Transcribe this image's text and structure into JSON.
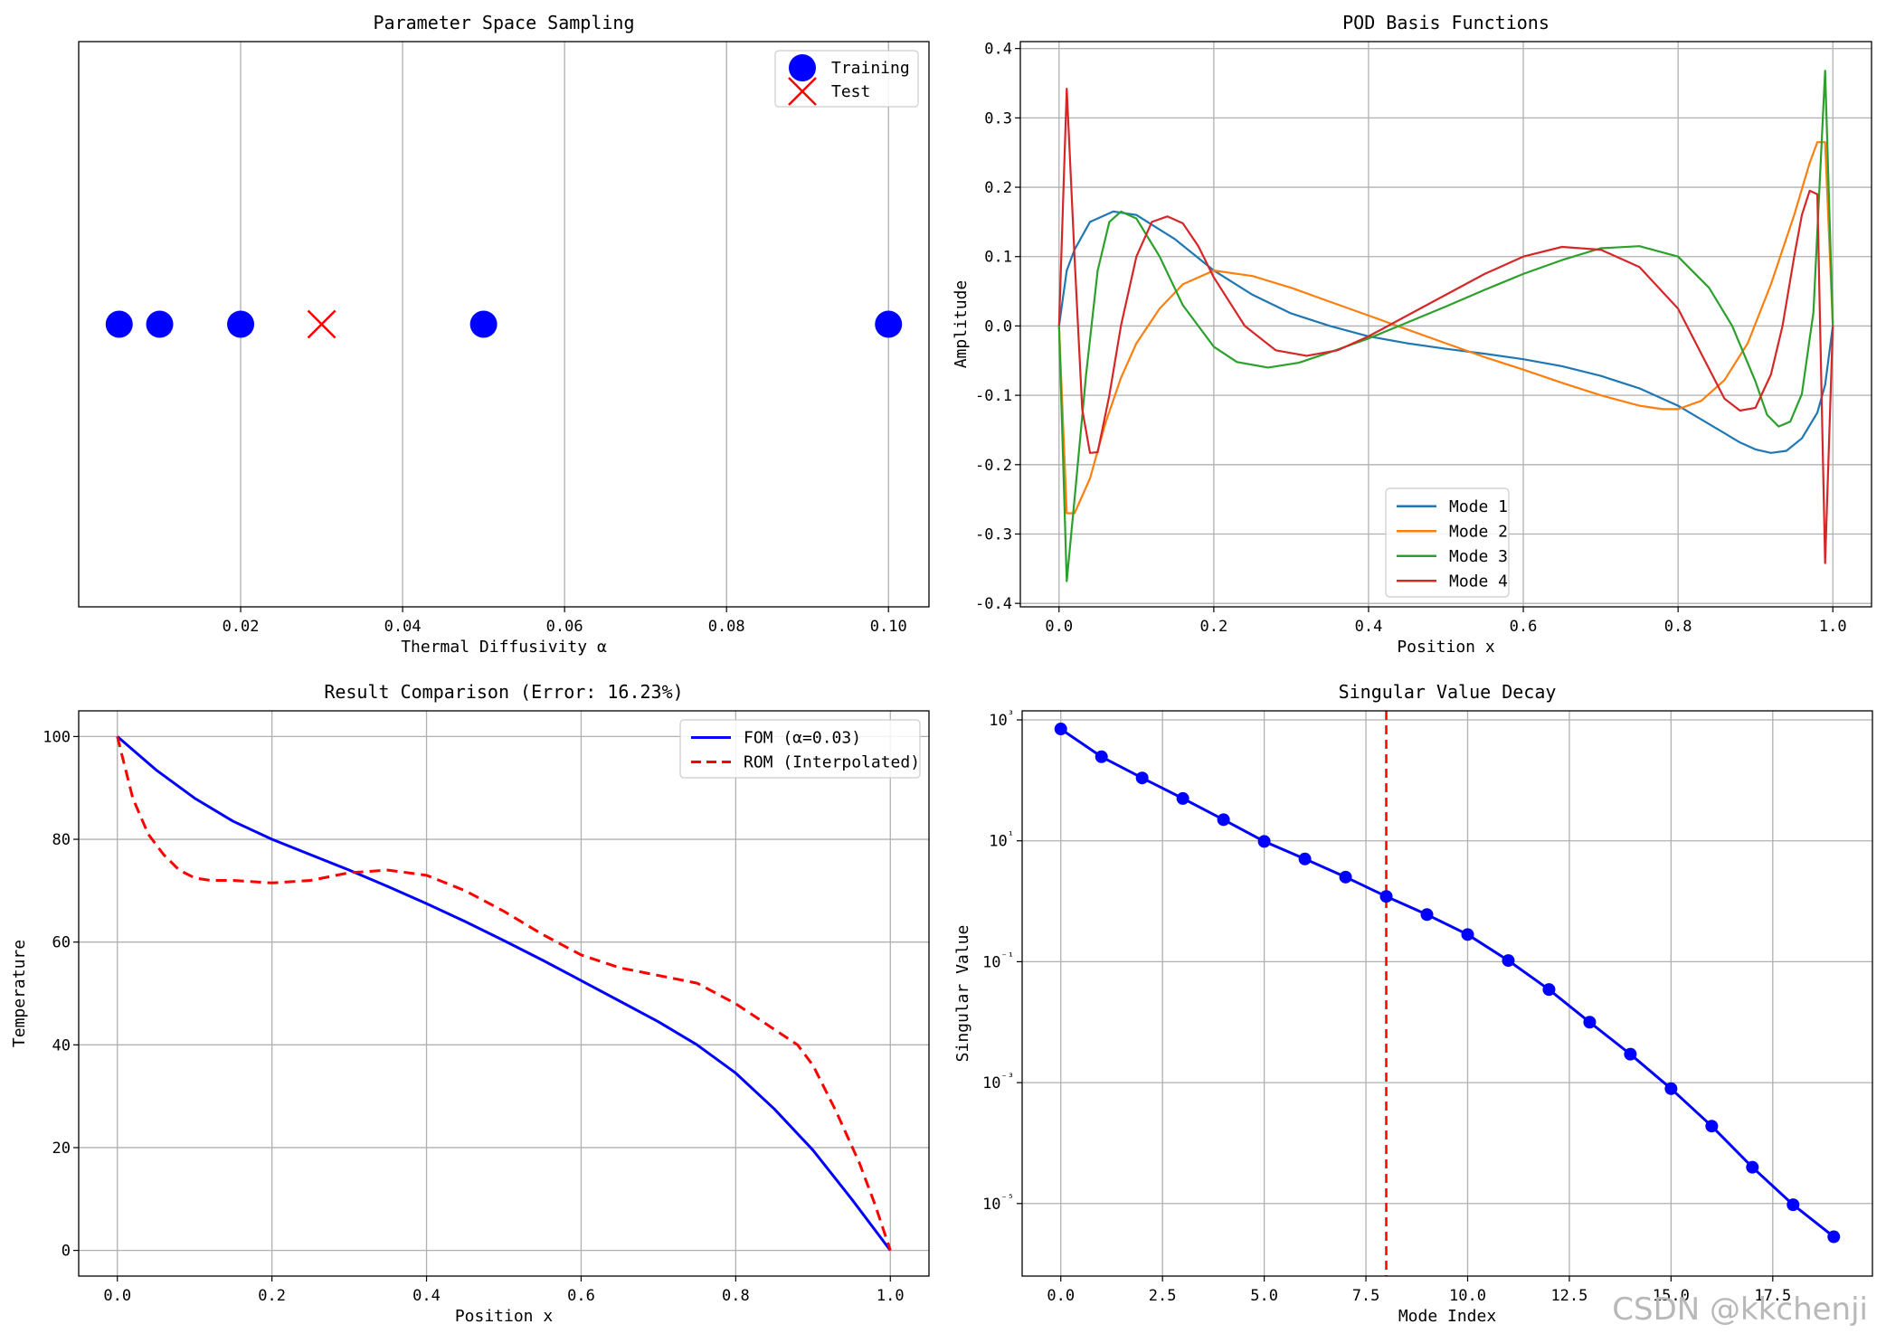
{
  "watermark": "CSDN @kkchenji",
  "chart_data": [
    {
      "id": "p1",
      "type": "scatter",
      "title": "Parameter Space Sampling",
      "xlabel": "Thermal Diffusivity α",
      "ylabel": "",
      "xlim": [
        0.0,
        0.105
      ],
      "ylim": [
        -0.05,
        0.05
      ],
      "xticks": [
        0.02,
        0.04,
        0.06,
        0.08,
        0.1
      ],
      "xticklabels": [
        "0.02",
        "0.04",
        "0.06",
        "0.08",
        "0.10"
      ],
      "yticks": [],
      "yticklabels": [],
      "grid": "x",
      "legend": "top-right",
      "series": [
        {
          "name": "Training",
          "color": "#0000ff",
          "marker": "circle",
          "x": [
            0.005,
            0.01,
            0.02,
            0.05,
            0.1
          ],
          "y": [
            0,
            0,
            0,
            0,
            0
          ]
        },
        {
          "name": "Test",
          "color": "#ff0000",
          "marker": "x",
          "x": [
            0.03
          ],
          "y": [
            0
          ]
        }
      ]
    },
    {
      "id": "p2",
      "type": "line",
      "title": "POD Basis Functions",
      "xlabel": "Position x",
      "ylabel": "Amplitude",
      "xlim": [
        -0.05,
        1.05
      ],
      "ylim": [
        -0.405,
        0.41
      ],
      "xticks": [
        0,
        0.2,
        0.4,
        0.6,
        0.8,
        1.0
      ],
      "xticklabels": [
        "0.0",
        "0.2",
        "0.4",
        "0.6",
        "0.8",
        "1.0"
      ],
      "yticks": [
        -0.4,
        -0.3,
        -0.2,
        -0.1,
        0,
        0.1,
        0.2,
        0.3,
        0.4
      ],
      "yticklabels": [
        "-0.4",
        "-0.3",
        "-0.2",
        "-0.1",
        "0.0",
        "0.1",
        "0.2",
        "0.3",
        "0.4"
      ],
      "grid": "both",
      "legend": "lower-center",
      "series": [
        {
          "name": "Mode 1",
          "color": "#1f77b4",
          "x": [
            0,
            0.01,
            0.02,
            0.04,
            0.07,
            0.1,
            0.15,
            0.2,
            0.25,
            0.3,
            0.35,
            0.4,
            0.45,
            0.5,
            0.55,
            0.6,
            0.65,
            0.7,
            0.75,
            0.8,
            0.85,
            0.88,
            0.9,
            0.92,
            0.94,
            0.96,
            0.98,
            0.99,
            1.0
          ],
          "y": [
            0,
            0.08,
            0.11,
            0.15,
            0.165,
            0.16,
            0.125,
            0.08,
            0.045,
            0.018,
            0.0,
            -0.015,
            -0.025,
            -0.033,
            -0.04,
            -0.048,
            -0.058,
            -0.072,
            -0.09,
            -0.115,
            -0.148,
            -0.168,
            -0.178,
            -0.183,
            -0.18,
            -0.162,
            -0.125,
            -0.085,
            0
          ]
        },
        {
          "name": "Mode 2",
          "color": "#ff7f0e",
          "x": [
            0,
            0.01,
            0.02,
            0.04,
            0.06,
            0.08,
            0.1,
            0.13,
            0.16,
            0.2,
            0.25,
            0.3,
            0.35,
            0.4,
            0.45,
            0.5,
            0.55,
            0.6,
            0.65,
            0.7,
            0.75,
            0.78,
            0.8,
            0.83,
            0.86,
            0.89,
            0.92,
            0.95,
            0.97,
            0.98,
            0.99,
            1.0
          ],
          "y": [
            0,
            -0.27,
            -0.27,
            -0.22,
            -0.14,
            -0.075,
            -0.025,
            0.025,
            0.06,
            0.08,
            0.072,
            0.055,
            0.035,
            0.015,
            -0.005,
            -0.025,
            -0.045,
            -0.063,
            -0.082,
            -0.1,
            -0.115,
            -0.12,
            -0.12,
            -0.108,
            -0.078,
            -0.025,
            0.06,
            0.16,
            0.235,
            0.265,
            0.265,
            0
          ]
        },
        {
          "name": "Mode 3",
          "color": "#2ca02c",
          "x": [
            0,
            0.01,
            0.02,
            0.035,
            0.05,
            0.065,
            0.08,
            0.1,
            0.13,
            0.16,
            0.2,
            0.23,
            0.27,
            0.31,
            0.35,
            0.4,
            0.45,
            0.5,
            0.55,
            0.6,
            0.65,
            0.7,
            0.75,
            0.8,
            0.84,
            0.87,
            0.9,
            0.915,
            0.93,
            0.945,
            0.96,
            0.975,
            0.99,
            1.0
          ],
          "y": [
            0,
            -0.368,
            -0.25,
            -0.07,
            0.08,
            0.15,
            0.165,
            0.155,
            0.1,
            0.03,
            -0.03,
            -0.052,
            -0.06,
            -0.053,
            -0.038,
            -0.018,
            0.005,
            0.028,
            0.052,
            0.075,
            0.095,
            0.112,
            0.115,
            0.1,
            0.055,
            0.0,
            -0.08,
            -0.128,
            -0.145,
            -0.138,
            -0.098,
            0.02,
            0.368,
            0
          ]
        },
        {
          "name": "Mode 4",
          "color": "#d62728",
          "x": [
            0,
            0.01,
            0.02,
            0.03,
            0.04,
            0.05,
            0.065,
            0.08,
            0.1,
            0.12,
            0.14,
            0.16,
            0.18,
            0.2,
            0.24,
            0.28,
            0.32,
            0.36,
            0.4,
            0.45,
            0.5,
            0.55,
            0.6,
            0.65,
            0.7,
            0.75,
            0.8,
            0.83,
            0.86,
            0.88,
            0.9,
            0.92,
            0.935,
            0.95,
            0.96,
            0.97,
            0.98,
            0.99,
            1.0
          ],
          "y": [
            0,
            0.342,
            0.1,
            -0.12,
            -0.183,
            -0.182,
            -0.1,
            0.0,
            0.1,
            0.15,
            0.158,
            0.148,
            0.115,
            0.07,
            0.0,
            -0.035,
            -0.043,
            -0.035,
            -0.015,
            0.015,
            0.045,
            0.075,
            0.1,
            0.114,
            0.11,
            0.085,
            0.025,
            -0.04,
            -0.105,
            -0.122,
            -0.118,
            -0.07,
            0.0,
            0.1,
            0.16,
            0.195,
            0.19,
            -0.342,
            0
          ]
        }
      ]
    },
    {
      "id": "p3",
      "type": "line",
      "title": "Result Comparison (Error: 16.23%)",
      "xlabel": "Position x",
      "ylabel": "Temperature",
      "xlim": [
        -0.05,
        1.05
      ],
      "ylim": [
        -5,
        105
      ],
      "xticks": [
        0,
        0.2,
        0.4,
        0.6,
        0.8,
        1.0
      ],
      "xticklabels": [
        "0.0",
        "0.2",
        "0.4",
        "0.6",
        "0.8",
        "1.0"
      ],
      "yticks": [
        0,
        20,
        40,
        60,
        80,
        100
      ],
      "yticklabels": [
        "0",
        "20",
        "40",
        "60",
        "80",
        "100"
      ],
      "grid": "both",
      "legend": "top-right",
      "series": [
        {
          "name": "FOM (α=0.03)",
          "color": "#0000ff",
          "dash": "solid",
          "x": [
            0,
            0.05,
            0.1,
            0.15,
            0.2,
            0.25,
            0.3,
            0.35,
            0.4,
            0.45,
            0.5,
            0.55,
            0.6,
            0.65,
            0.7,
            0.75,
            0.8,
            0.85,
            0.9,
            0.95,
            1.0
          ],
          "y": [
            100,
            93.5,
            88,
            83.5,
            80,
            77,
            74,
            70.8,
            67.5,
            64,
            60.3,
            56.5,
            52.5,
            48.5,
            44.5,
            40,
            34.5,
            27.5,
            19.5,
            10,
            0
          ]
        },
        {
          "name": "ROM (Interpolated)",
          "color": "#ff0000",
          "dash": "dashed",
          "x": [
            0,
            0.02,
            0.04,
            0.06,
            0.08,
            0.1,
            0.12,
            0.15,
            0.2,
            0.25,
            0.3,
            0.35,
            0.4,
            0.45,
            0.5,
            0.55,
            0.6,
            0.65,
            0.7,
            0.75,
            0.8,
            0.85,
            0.88,
            0.9,
            0.93,
            0.96,
            0.98,
            1.0
          ],
          "y": [
            100,
            88,
            81,
            77,
            74,
            72.5,
            72,
            72,
            71.5,
            72,
            73.5,
            74,
            73,
            70,
            66,
            61.5,
            57.5,
            55,
            53.5,
            52,
            48,
            43,
            40,
            36,
            27,
            17,
            9,
            0
          ]
        }
      ]
    },
    {
      "id": "p4",
      "type": "line",
      "title": "Singular Value Decay",
      "xlabel": "Mode Index",
      "ylabel": "Singular Value",
      "yscale": "log",
      "xlim": [
        -0.95,
        19.95
      ],
      "ylim_log10": [
        -6.2,
        3.15
      ],
      "xticks": [
        0,
        2.5,
        5,
        7.5,
        10,
        12.5,
        15,
        17.5
      ],
      "xticklabels": [
        "0.0",
        "2.5",
        "5.0",
        "7.5",
        "10.0",
        "12.5",
        "15.0",
        "17.5"
      ],
      "yticks_log10": [
        3,
        1,
        -1,
        -3,
        -5
      ],
      "yticklabels": [
        "10³",
        "10¹",
        "10⁻¹",
        "10⁻³",
        "10⁻⁵"
      ],
      "grid": "both",
      "legend": "none",
      "vline": {
        "x": 8,
        "color": "#ff0000",
        "dash": "dashed"
      },
      "series": [
        {
          "name": "",
          "color": "#0000ff",
          "marker": "circle",
          "x": [
            0,
            1,
            2,
            3,
            4,
            5,
            6,
            7,
            8,
            9,
            10,
            11,
            12,
            13,
            14,
            15,
            16,
            17,
            18,
            19
          ],
          "y_log10": [
            2.85,
            2.39,
            2.04,
            1.7,
            1.35,
            0.99,
            0.7,
            0.4,
            0.08,
            -0.22,
            -0.55,
            -0.98,
            -1.46,
            -2.0,
            -2.53,
            -3.1,
            -3.72,
            -4.4,
            -5.02,
            -5.55
          ]
        }
      ]
    }
  ]
}
